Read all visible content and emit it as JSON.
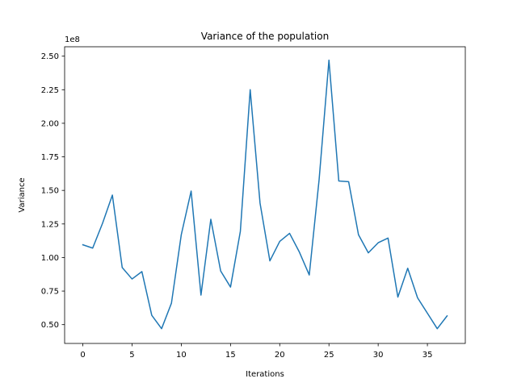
{
  "chart_data": {
    "type": "line",
    "title": "Variance of the population",
    "xlabel": "Iterations",
    "ylabel": "Variance",
    "y_offset_label": "1e8",
    "y_scale": 100000000,
    "xlim": [
      -1.85,
      38.85
    ],
    "ylim": [
      36000000,
      257000000
    ],
    "xticks": [
      0,
      5,
      10,
      15,
      20,
      25,
      30,
      35
    ],
    "yticks": [
      0.5,
      0.75,
      1.0,
      1.25,
      1.5,
      1.75,
      2.0,
      2.25,
      2.5
    ],
    "ytick_labels": [
      "0.50",
      "0.75",
      "1.00",
      "1.25",
      "1.50",
      "1.75",
      "2.00",
      "2.25",
      "2.50"
    ],
    "grid": false,
    "line_color": "#1f77b4",
    "series": [
      {
        "x": [
          0,
          1,
          2,
          3,
          4,
          5,
          6,
          7,
          8,
          9,
          10,
          11,
          12,
          13,
          14,
          15,
          16,
          17,
          18,
          19,
          20,
          21,
          22,
          23,
          24,
          25,
          26,
          27,
          28,
          29,
          30,
          31,
          32,
          33,
          34,
          35,
          36,
          37
        ],
        "values": [
          109500000,
          107000000,
          125500000,
          146500000,
          92500000,
          84000000,
          89500000,
          57000000,
          47000000,
          66000000,
          117000000,
          149500000,
          72000000,
          128500000,
          90000000,
          78000000,
          119500000,
          225000000,
          140500000,
          97500000,
          112000000,
          118000000,
          104000000,
          87000000,
          158000000,
          247000000,
          157000000,
          156500000,
          117000000,
          103500000,
          111000000,
          114500000,
          70500000,
          92000000,
          70000000,
          58500000,
          47000000,
          56500000
        ]
      }
    ]
  }
}
